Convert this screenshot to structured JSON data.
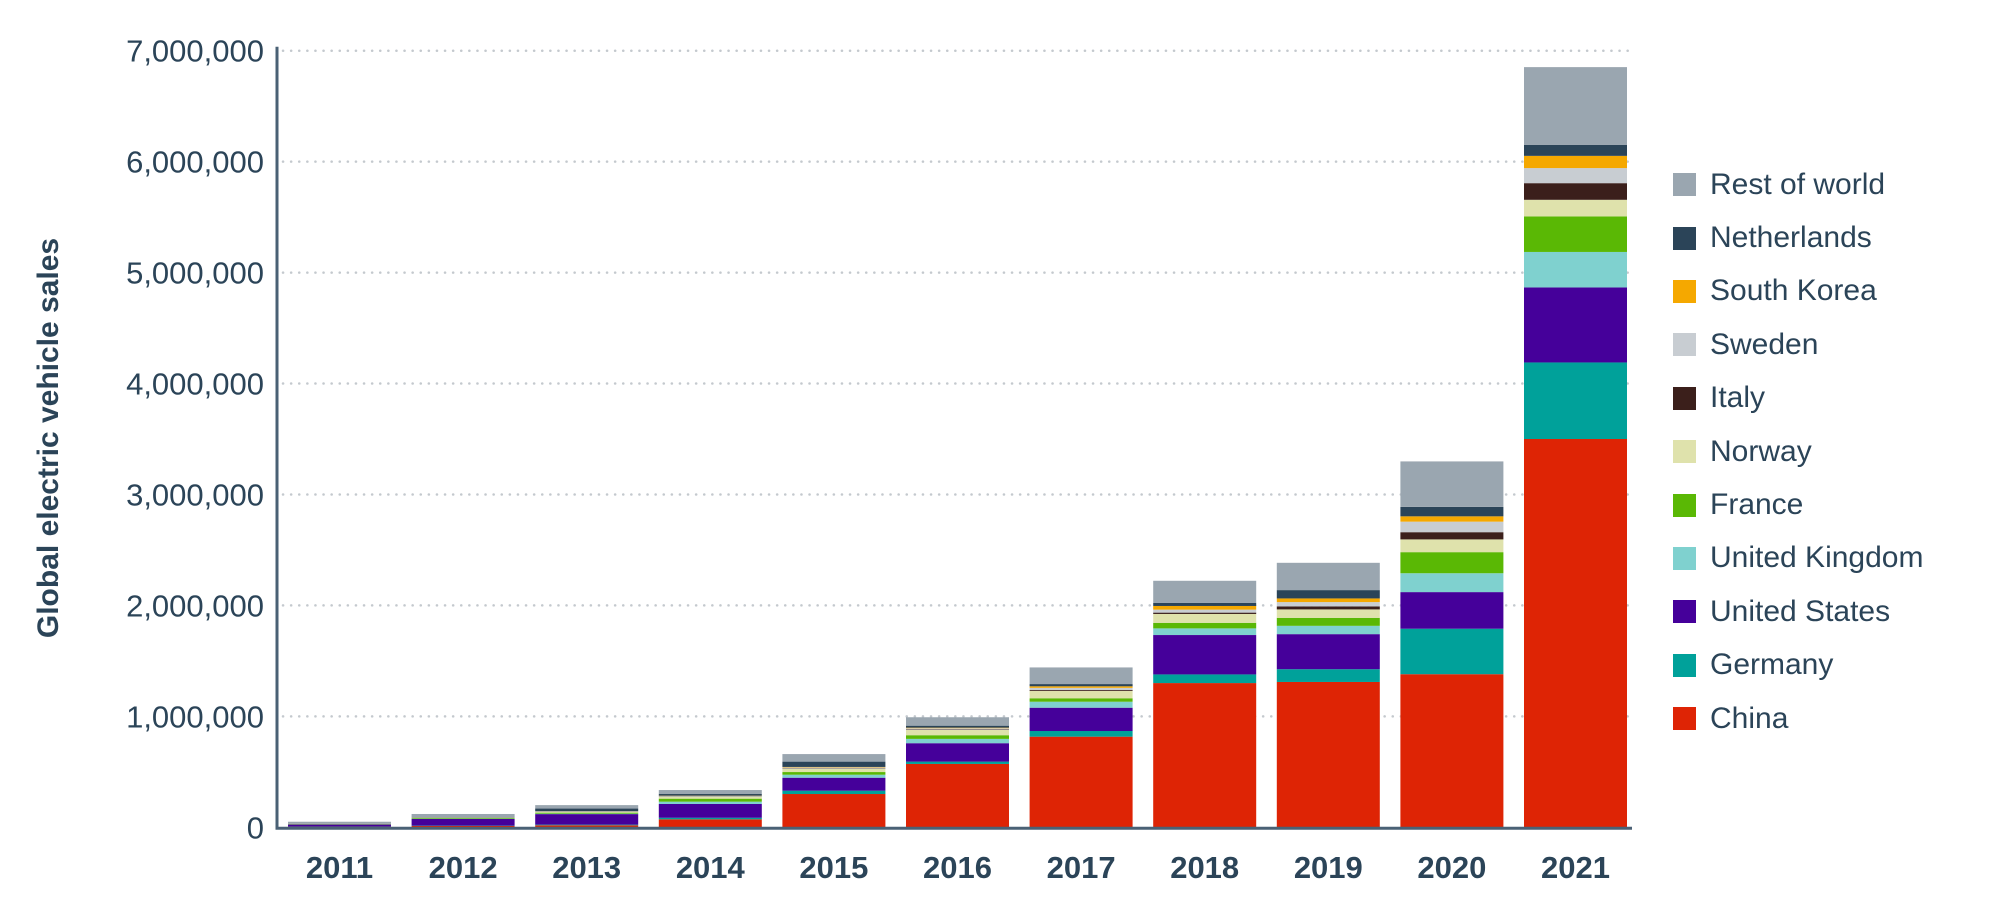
{
  "chart_data": {
    "type": "bar",
    "stacked": true,
    "title": "",
    "xlabel": "",
    "ylabel": "Global electric vehicle sales",
    "ylim": [
      0,
      7000000
    ],
    "yticks": [
      0,
      1000000,
      2000000,
      3000000,
      4000000,
      5000000,
      6000000,
      7000000
    ],
    "ytick_labels": [
      "0",
      "1,000,000",
      "2,000,000",
      "3,000,000",
      "4,000,000",
      "5,000,000",
      "6,000,000",
      "7,000,000"
    ],
    "grid": "horizontal dotted",
    "legend_position": "right",
    "categories": [
      "2011",
      "2012",
      "2013",
      "2014",
      "2015",
      "2016",
      "2017",
      "2018",
      "2019",
      "2020",
      "2021"
    ],
    "series": [
      {
        "name": "China",
        "color": "#de2405",
        "values": [
          5000,
          12000,
          18000,
          72000,
          300000,
          571000,
          817000,
          1300000,
          1310000,
          1380000,
          3500000
        ]
      },
      {
        "name": "Germany",
        "color": "#00a19a",
        "values": [
          2000,
          3000,
          6000,
          14000,
          30000,
          21000,
          51000,
          78000,
          115000,
          410000,
          690000
        ]
      },
      {
        "name": "United States",
        "color": "#45009a",
        "values": [
          18000,
          60000,
          95000,
          124000,
          117000,
          166000,
          210000,
          355000,
          316000,
          330000,
          676000
        ]
      },
      {
        "name": "United Kingdom",
        "color": "#7fd1cf",
        "values": [
          1000,
          3000,
          4000,
          21000,
          27000,
          39000,
          54000,
          60000,
          75000,
          170000,
          320000
        ]
      },
      {
        "name": "France",
        "color": "#5ab805",
        "values": [
          3000,
          6000,
          9000,
          27000,
          24000,
          33000,
          31000,
          50000,
          72000,
          190000,
          320000
        ]
      },
      {
        "name": "Norway",
        "color": "#dfe2ac",
        "values": [
          2000,
          4000,
          8000,
          18000,
          30000,
          48000,
          66000,
          80000,
          76000,
          115000,
          150000
        ]
      },
      {
        "name": "Italy",
        "color": "#3b1f1b",
        "values": [
          300,
          500,
          1000,
          2000,
          4000,
          5000,
          8000,
          12000,
          27000,
          65000,
          150000
        ]
      },
      {
        "name": "Sweden",
        "color": "#c8cdd2",
        "values": [
          500,
          1000,
          3000,
          5000,
          8000,
          10000,
          20000,
          27000,
          39000,
          95000,
          136000
        ]
      },
      {
        "name": "South Korea",
        "color": "#f5a800",
        "values": [
          300,
          500,
          1000,
          2000,
          4000,
          5000,
          14000,
          33000,
          33000,
          48000,
          110000
        ]
      },
      {
        "name": "Netherlands",
        "color": "#2b4458",
        "values": [
          1000,
          5000,
          24000,
          15000,
          48000,
          18000,
          20000,
          27000,
          75000,
          85000,
          100000
        ]
      },
      {
        "name": "Rest of world",
        "color": "#9aa6b0",
        "values": [
          17000,
          25000,
          31000,
          36000,
          68000,
          76000,
          150000,
          200000,
          246000,
          410000,
          700000
        ]
      }
    ]
  },
  "legend": {
    "items": [
      {
        "label": "Rest of world",
        "color": "#9aa6b0"
      },
      {
        "label": "Netherlands",
        "color": "#2b4458"
      },
      {
        "label": "South Korea",
        "color": "#f5a800"
      },
      {
        "label": "Sweden",
        "color": "#c8cdd2"
      },
      {
        "label": "Italy",
        "color": "#3b1f1b"
      },
      {
        "label": "Norway",
        "color": "#dfe2ac"
      },
      {
        "label": "France",
        "color": "#5ab805"
      },
      {
        "label": "United Kingdom",
        "color": "#7fd1cf"
      },
      {
        "label": "United States",
        "color": "#45009a"
      },
      {
        "label": "Germany",
        "color": "#00a19a"
      },
      {
        "label": "China",
        "color": "#de2405"
      }
    ]
  },
  "colors": {
    "axis": "#4a6175",
    "text": "#2b4458",
    "grid": "#c4c9ce"
  }
}
